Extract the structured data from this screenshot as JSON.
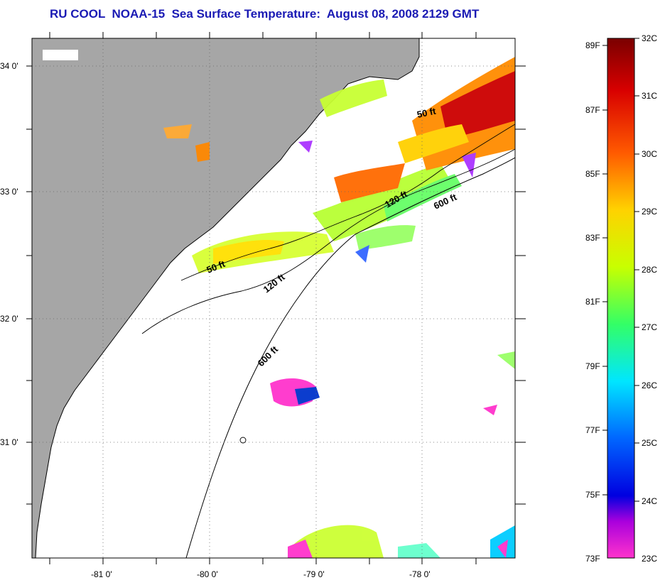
{
  "title": "RU COOL  NOAA-15  Sea Surface Temperature:  August 08, 2008 2129 GMT",
  "map": {
    "lat_labels": [
      "34 0'",
      "33 0'",
      "32 0'",
      "31 0'"
    ],
    "lon_labels": [
      "-81 0'",
      "-80 0'",
      "-79 0'",
      "-78 0'"
    ],
    "contour_labels": [
      {
        "name": "isobath-50ft-north",
        "text": "50 ft"
      },
      {
        "name": "isobath-50ft-south",
        "text": "50 ft"
      },
      {
        "name": "isobath-120ft-north",
        "text": "120 ft"
      },
      {
        "name": "isobath-120ft-south",
        "text": "120 ft"
      },
      {
        "name": "isobath-600ft-north",
        "text": "600 ft"
      },
      {
        "name": "isobath-600ft-south",
        "text": "600 ft"
      }
    ],
    "colors": {
      "land": "#a6a6a6",
      "ocean": "#ffffff",
      "coast": "#000000"
    }
  },
  "colorbar": {
    "fahrenheit_labels": [
      "89F",
      "87F",
      "85F",
      "83F",
      "81F",
      "79F",
      "77F",
      "75F",
      "73F"
    ],
    "celsius_labels": [
      "32C",
      "31C",
      "30C",
      "29C",
      "28C",
      "27C",
      "26C",
      "25C",
      "24C",
      "23C"
    ],
    "gradient_stops": [
      "#7a0000",
      "#d80000",
      "#ff5a00",
      "#ffd200",
      "#c8ff00",
      "#33ff66",
      "#00e6ff",
      "#0066ff",
      "#0000e0",
      "#aa00dd",
      "#ff33cc"
    ]
  }
}
